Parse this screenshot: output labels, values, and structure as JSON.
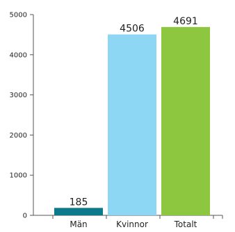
{
  "chart_data": {
    "type": "bar",
    "title": "",
    "xlabel": "",
    "ylabel": "",
    "categories": [
      "Män",
      "Kvinnor",
      "Totalt"
    ],
    "values": [
      185,
      4506,
      4691
    ],
    "data_labels": [
      "185",
      "4506",
      "4691"
    ],
    "colors": [
      "#0d7a8c",
      "#8dd7f5",
      "#8dc63f"
    ],
    "ylim": [
      0,
      5000
    ],
    "yticks": [
      0,
      1000,
      2000,
      3000,
      4000,
      5000
    ],
    "ytick_labels": [
      "0",
      "1000",
      "2000",
      "3000",
      "4000",
      "5000"
    ],
    "grid": false,
    "legend": "none"
  }
}
